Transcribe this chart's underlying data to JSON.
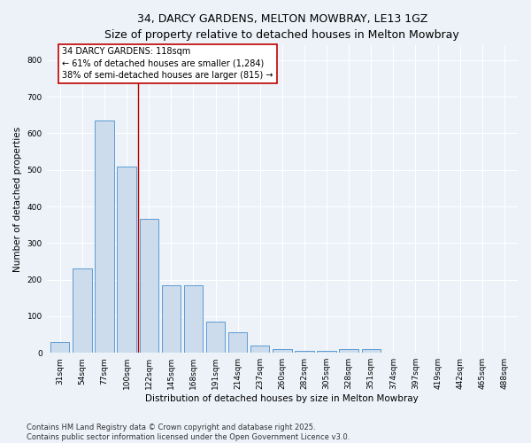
{
  "title_line1": "34, DARCY GARDENS, MELTON MOWBRAY, LE13 1GZ",
  "title_line2": "Size of property relative to detached houses in Melton Mowbray",
  "xlabel": "Distribution of detached houses by size in Melton Mowbray",
  "ylabel": "Number of detached properties",
  "categories": [
    "31sqm",
    "54sqm",
    "77sqm",
    "100sqm",
    "122sqm",
    "145sqm",
    "168sqm",
    "191sqm",
    "214sqm",
    "237sqm",
    "260sqm",
    "282sqm",
    "305sqm",
    "328sqm",
    "351sqm",
    "374sqm",
    "397sqm",
    "419sqm",
    "442sqm",
    "465sqm",
    "488sqm"
  ],
  "values": [
    30,
    230,
    635,
    510,
    365,
    185,
    185,
    85,
    55,
    20,
    10,
    5,
    5,
    10,
    10,
    0,
    0,
    0,
    0,
    0,
    0
  ],
  "bar_color": "#ccdcec",
  "bar_edge_color": "#5b9bd5",
  "vline_x_index": 3.5,
  "vline_color": "#c00000",
  "annotation_box_text": "34 DARCY GARDENS: 118sqm\n← 61% of detached houses are smaller (1,284)\n38% of semi-detached houses are larger (815) →",
  "ylim": [
    0,
    840
  ],
  "yticks": [
    0,
    100,
    200,
    300,
    400,
    500,
    600,
    700,
    800
  ],
  "footer_line1": "Contains HM Land Registry data © Crown copyright and database right 2025.",
  "footer_line2": "Contains public sector information licensed under the Open Government Licence v3.0.",
  "background_color": "#edf2f8",
  "plot_bg_color": "#edf2f8",
  "grid_color": "#ffffff",
  "title_fontsize": 9,
  "subtitle_fontsize": 8,
  "axis_label_fontsize": 7.5,
  "tick_fontsize": 6.5,
  "annotation_fontsize": 7,
  "footer_fontsize": 6
}
